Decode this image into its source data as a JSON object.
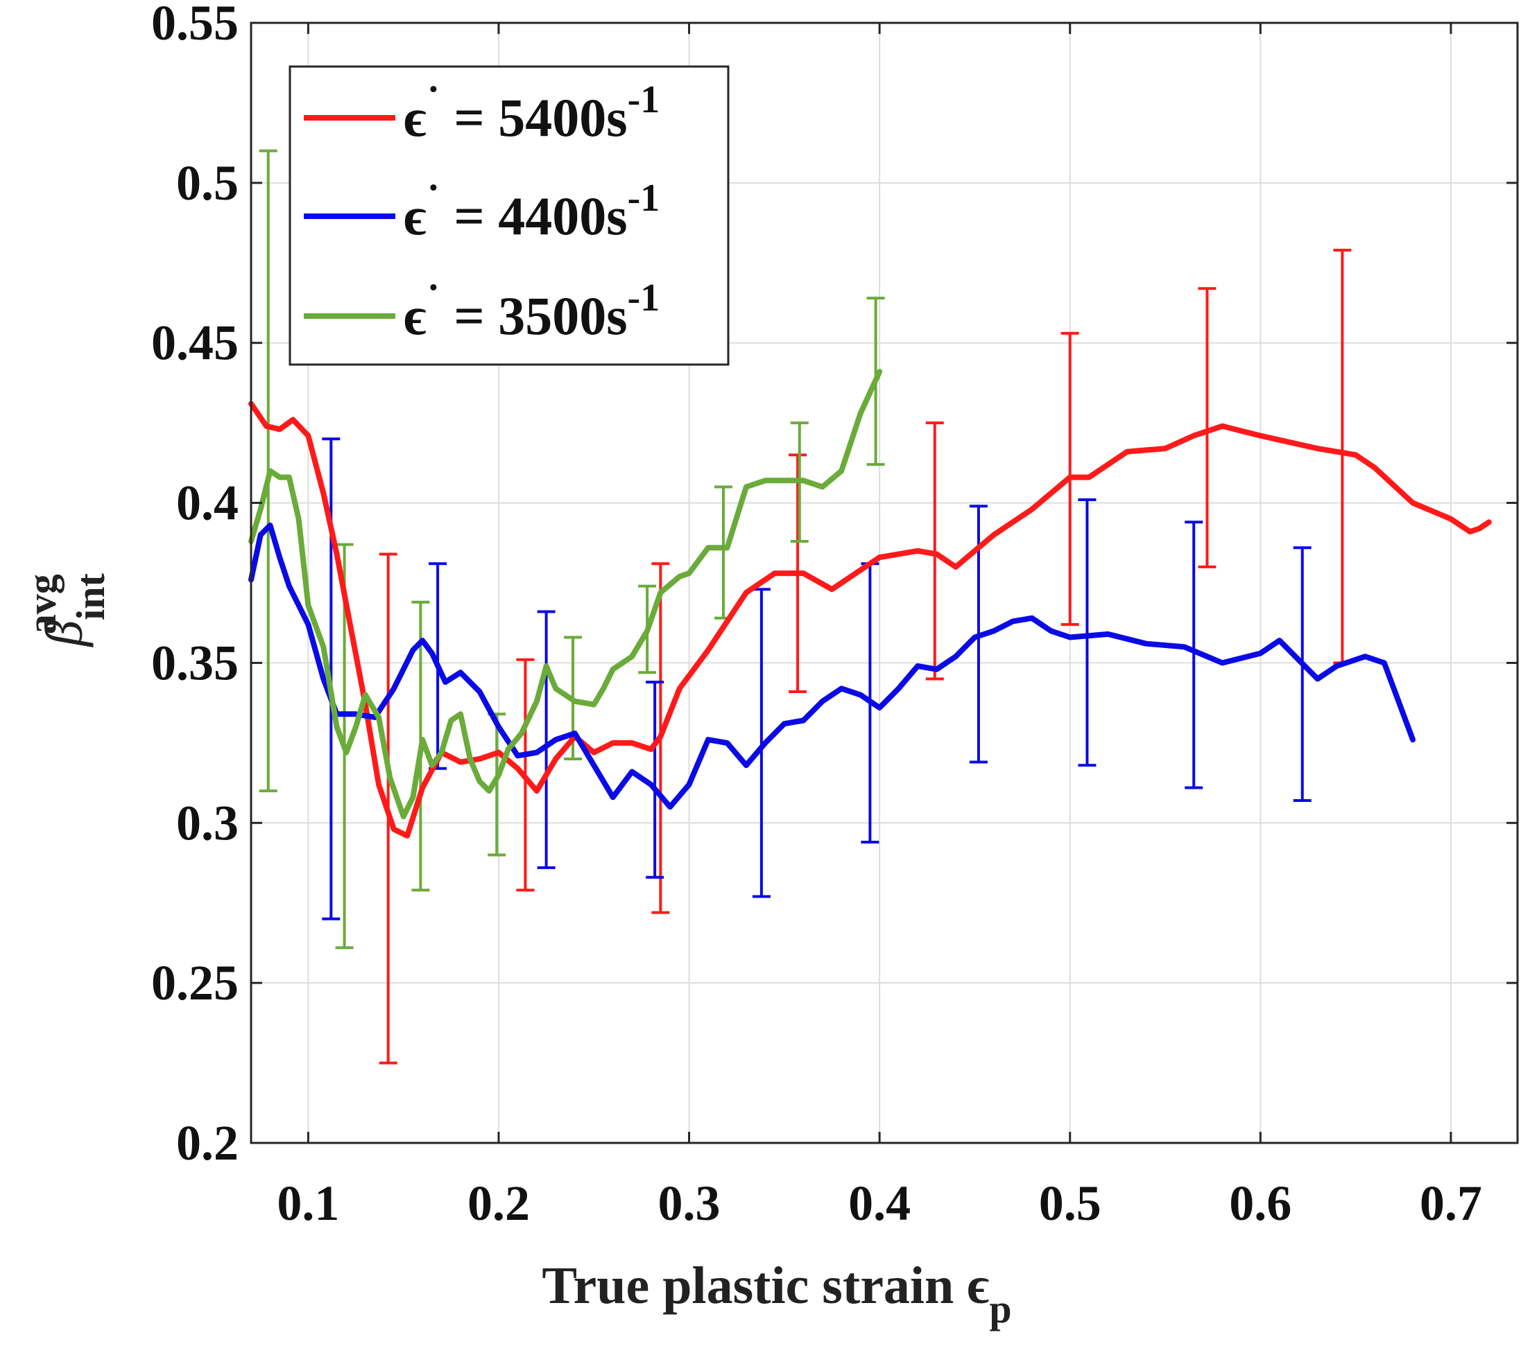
{
  "chart_data": {
    "type": "line",
    "title": "",
    "xlabel": "True plastic strain",
    "xlabel_symbol": "ϵ",
    "xlabel_subscript": "p",
    "ylabel_symbol": "β",
    "ylabel_superscript": "avg",
    "ylabel_subscript": "int",
    "xlim": [
      0.07,
      0.735
    ],
    "ylim": [
      0.2,
      0.55
    ],
    "xticks": [
      0.1,
      0.2,
      0.3,
      0.4,
      0.5,
      0.6,
      0.7
    ],
    "xtick_labels": [
      "0.1",
      "0.2",
      "0.3",
      "0.4",
      "0.5",
      "0.6",
      "0.7"
    ],
    "yticks": [
      0.2,
      0.25,
      0.3,
      0.35,
      0.4,
      0.45,
      0.5,
      0.55
    ],
    "ytick_labels": [
      "0.2",
      "0.25",
      "0.3",
      "0.35",
      "0.4",
      "0.45",
      "0.5",
      "0.55"
    ],
    "grid": true,
    "legend_position": "top-left",
    "series": [
      {
        "name_symbol": "ϵ",
        "name_dot": "˙",
        "name_text": " = 5400s",
        "name_sup": "-1",
        "color": "#ff1a1a",
        "x": [
          0.07,
          0.078,
          0.085,
          0.092,
          0.1,
          0.108,
          0.115,
          0.122,
          0.13,
          0.137,
          0.145,
          0.152,
          0.16,
          0.17,
          0.18,
          0.19,
          0.2,
          0.21,
          0.22,
          0.23,
          0.24,
          0.25,
          0.26,
          0.27,
          0.28,
          0.285,
          0.295,
          0.31,
          0.33,
          0.345,
          0.36,
          0.375,
          0.385,
          0.4,
          0.42,
          0.43,
          0.44,
          0.46,
          0.48,
          0.5,
          0.51,
          0.53,
          0.55,
          0.565,
          0.58,
          0.6,
          0.63,
          0.65,
          0.66,
          0.68,
          0.7,
          0.71,
          0.715,
          0.72
        ],
        "y": [
          0.431,
          0.424,
          0.423,
          0.426,
          0.421,
          0.403,
          0.384,
          0.362,
          0.337,
          0.312,
          0.298,
          0.296,
          0.311,
          0.322,
          0.319,
          0.32,
          0.322,
          0.317,
          0.31,
          0.32,
          0.327,
          0.322,
          0.325,
          0.325,
          0.323,
          0.327,
          0.342,
          0.354,
          0.372,
          0.378,
          0.378,
          0.373,
          0.377,
          0.383,
          0.385,
          0.384,
          0.38,
          0.39,
          0.398,
          0.408,
          0.408,
          0.416,
          0.417,
          0.421,
          0.424,
          0.421,
          0.417,
          0.415,
          0.411,
          0.4,
          0.395,
          0.391,
          0.392,
          0.394
        ]
      },
      {
        "name_symbol": "ϵ",
        "name_dot": "˙",
        "name_text": " = 4400s",
        "name_sup": "-1",
        "color": "#0a0ae6",
        "x": [
          0.07,
          0.075,
          0.08,
          0.085,
          0.09,
          0.1,
          0.108,
          0.115,
          0.125,
          0.135,
          0.145,
          0.155,
          0.16,
          0.165,
          0.172,
          0.18,
          0.19,
          0.2,
          0.21,
          0.22,
          0.23,
          0.24,
          0.25,
          0.26,
          0.27,
          0.28,
          0.29,
          0.3,
          0.31,
          0.32,
          0.33,
          0.34,
          0.35,
          0.36,
          0.37,
          0.38,
          0.39,
          0.4,
          0.41,
          0.42,
          0.43,
          0.44,
          0.45,
          0.46,
          0.47,
          0.48,
          0.49,
          0.5,
          0.52,
          0.54,
          0.56,
          0.58,
          0.6,
          0.61,
          0.62,
          0.63,
          0.64,
          0.655,
          0.665,
          0.68
        ],
        "y": [
          0.376,
          0.39,
          0.393,
          0.383,
          0.374,
          0.362,
          0.345,
          0.334,
          0.334,
          0.333,
          0.342,
          0.354,
          0.357,
          0.353,
          0.344,
          0.347,
          0.341,
          0.33,
          0.321,
          0.322,
          0.326,
          0.328,
          0.318,
          0.308,
          0.316,
          0.312,
          0.305,
          0.312,
          0.326,
          0.325,
          0.318,
          0.325,
          0.331,
          0.332,
          0.338,
          0.342,
          0.34,
          0.336,
          0.342,
          0.349,
          0.348,
          0.352,
          0.358,
          0.36,
          0.363,
          0.364,
          0.36,
          0.358,
          0.359,
          0.356,
          0.355,
          0.35,
          0.353,
          0.357,
          0.351,
          0.345,
          0.349,
          0.352,
          0.35,
          0.326
        ]
      },
      {
        "name_symbol": "ϵ",
        "name_dot": "˙",
        "name_text": " = 3500s",
        "name_sup": "-1",
        "color": "#6aab3a",
        "x": [
          0.07,
          0.075,
          0.08,
          0.085,
          0.09,
          0.095,
          0.1,
          0.108,
          0.115,
          0.12,
          0.125,
          0.13,
          0.137,
          0.143,
          0.15,
          0.155,
          0.16,
          0.165,
          0.17,
          0.175,
          0.18,
          0.185,
          0.19,
          0.195,
          0.2,
          0.205,
          0.212,
          0.22,
          0.225,
          0.23,
          0.24,
          0.25,
          0.255,
          0.26,
          0.27,
          0.278,
          0.285,
          0.295,
          0.3,
          0.31,
          0.32,
          0.33,
          0.34,
          0.35,
          0.36,
          0.37,
          0.38,
          0.39,
          0.4
        ],
        "y": [
          0.388,
          0.398,
          0.41,
          0.408,
          0.408,
          0.395,
          0.368,
          0.355,
          0.33,
          0.322,
          0.33,
          0.34,
          0.333,
          0.314,
          0.302,
          0.308,
          0.326,
          0.318,
          0.322,
          0.332,
          0.334,
          0.32,
          0.313,
          0.31,
          0.315,
          0.323,
          0.328,
          0.338,
          0.349,
          0.342,
          0.338,
          0.337,
          0.342,
          0.348,
          0.352,
          0.36,
          0.372,
          0.377,
          0.378,
          0.386,
          0.386,
          0.405,
          0.407,
          0.407,
          0.407,
          0.405,
          0.41,
          0.428,
          0.441
        ]
      }
    ],
    "error_bars": [
      {
        "series": 0,
        "points": [
          {
            "x": 0.142,
            "ymin": 0.225,
            "ymax": 0.384
          },
          {
            "x": 0.214,
            "ymin": 0.279,
            "ymax": 0.351
          },
          {
            "x": 0.285,
            "ymin": 0.272,
            "ymax": 0.381
          },
          {
            "x": 0.357,
            "ymin": 0.341,
            "ymax": 0.415
          },
          {
            "x": 0.429,
            "ymin": 0.345,
            "ymax": 0.425
          },
          {
            "x": 0.5,
            "ymin": 0.362,
            "ymax": 0.453
          },
          {
            "x": 0.572,
            "ymin": 0.38,
            "ymax": 0.467
          },
          {
            "x": 0.643,
            "ymin": 0.35,
            "ymax": 0.479
          }
        ]
      },
      {
        "series": 1,
        "points": [
          {
            "x": 0.112,
            "ymin": 0.27,
            "ymax": 0.42
          },
          {
            "x": 0.168,
            "ymin": 0.317,
            "ymax": 0.381
          },
          {
            "x": 0.225,
            "ymin": 0.286,
            "ymax": 0.366
          },
          {
            "x": 0.282,
            "ymin": 0.283,
            "ymax": 0.344
          },
          {
            "x": 0.338,
            "ymin": 0.277,
            "ymax": 0.373
          },
          {
            "x": 0.395,
            "ymin": 0.294,
            "ymax": 0.381
          },
          {
            "x": 0.452,
            "ymin": 0.319,
            "ymax": 0.399
          },
          {
            "x": 0.509,
            "ymin": 0.318,
            "ymax": 0.401
          },
          {
            "x": 0.565,
            "ymin": 0.311,
            "ymax": 0.394
          },
          {
            "x": 0.622,
            "ymin": 0.307,
            "ymax": 0.386
          }
        ]
      },
      {
        "series": 2,
        "points": [
          {
            "x": 0.079,
            "ymin": 0.31,
            "ymax": 0.51
          },
          {
            "x": 0.119,
            "ymin": 0.261,
            "ymax": 0.387
          },
          {
            "x": 0.159,
            "ymin": 0.279,
            "ymax": 0.369
          },
          {
            "x": 0.199,
            "ymin": 0.29,
            "ymax": 0.334
          },
          {
            "x": 0.239,
            "ymin": 0.32,
            "ymax": 0.358
          },
          {
            "x": 0.278,
            "ymin": 0.347,
            "ymax": 0.374
          },
          {
            "x": 0.318,
            "ymin": 0.364,
            "ymax": 0.405
          },
          {
            "x": 0.358,
            "ymin": 0.388,
            "ymax": 0.425
          },
          {
            "x": 0.398,
            "ymin": 0.412,
            "ymax": 0.464
          }
        ]
      }
    ]
  }
}
